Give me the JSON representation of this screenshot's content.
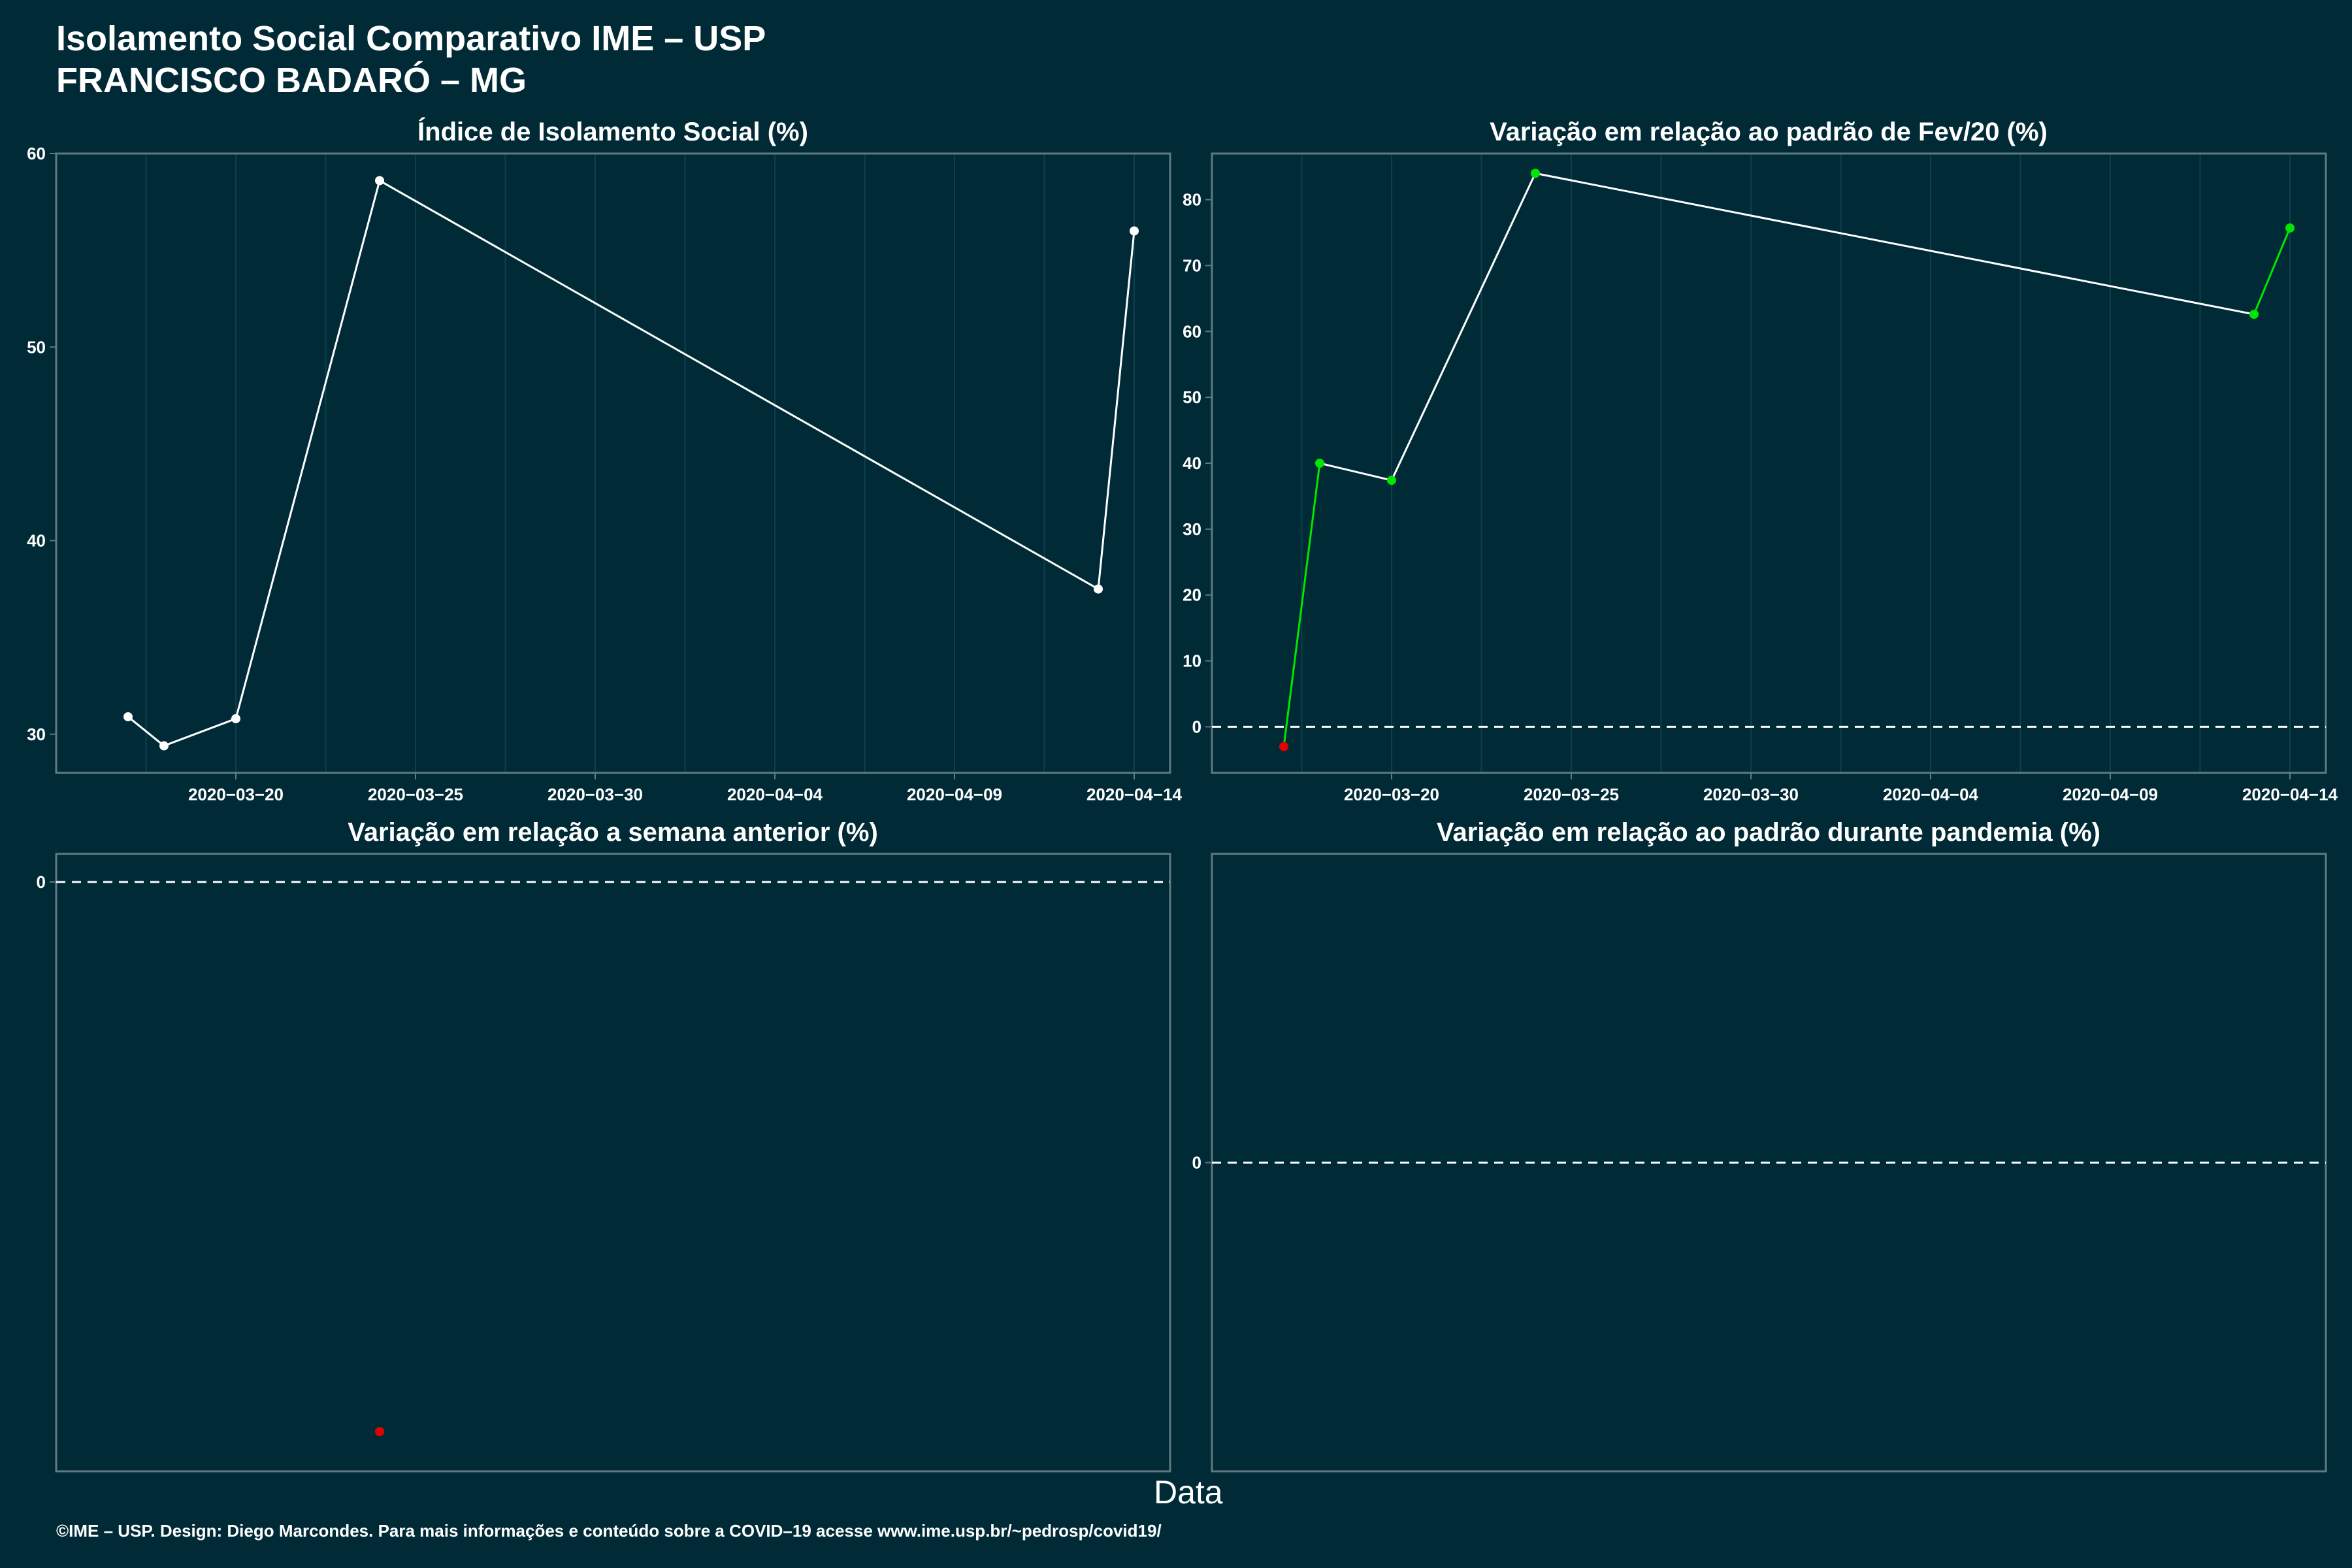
{
  "header": {
    "title_line1": "Isolamento Social Comparativo IME – USP",
    "title_line2": "FRANCISCO BADARÓ – MG"
  },
  "x_axis_label": "Data",
  "footer": "©IME – USP. Design: Diego Marcondes. Para mais informações e conteúdo sobre a COVID–19 acesse www.ime.usp.br/~pedrosp/covid19/",
  "colors": {
    "background": "#002b36",
    "line": "#ffffff",
    "positive": "#00e600",
    "negative": "#e60000",
    "grid": "#0d3f4c",
    "frame": "#5f7a80"
  },
  "chart_data": [
    {
      "type": "line",
      "title": "Índice de Isolamento Social (%)",
      "x_type": "date",
      "x": [
        "2020-03-17",
        "2020-03-18",
        "2020-03-20",
        "2020-03-24",
        "2020-04-13",
        "2020-04-14"
      ],
      "series": [
        {
          "values": [
            30.9,
            29.4,
            30.8,
            58.6,
            37.5,
            56.0
          ]
        }
      ],
      "x_ticks": [
        "2020−03−20",
        "2020−03−25",
        "2020−03−30",
        "2020−04−04",
        "2020−04−09",
        "2020−04−14"
      ],
      "y_ticks": [
        "30",
        "40",
        "50",
        "60"
      ],
      "ylim": [
        28,
        60
      ],
      "point_color": "white",
      "grid": true
    },
    {
      "type": "line",
      "title": "Variação em relação ao padrão de Fev/20 (%)",
      "x_type": "date",
      "x": [
        "2020-03-17",
        "2020-03-18",
        "2020-03-20",
        "2020-03-24",
        "2020-04-13",
        "2020-04-14"
      ],
      "series": [
        {
          "values": [
            -3.0,
            40.0,
            37.4,
            84.0,
            62.6,
            75.7
          ]
        }
      ],
      "x_ticks": [
        "2020−03−20",
        "2020−03−25",
        "2020−03−30",
        "2020−04−04",
        "2020−04−09",
        "2020−04−14"
      ],
      "y_ticks": [
        "0",
        "10",
        "20",
        "30",
        "40",
        "50",
        "60",
        "70",
        "80"
      ],
      "ylim": [
        -7,
        87
      ],
      "reference_line": 0,
      "point_color": "sign",
      "grid": true
    },
    {
      "type": "scatter",
      "title": "Variação em relação a semana anterior (%)",
      "x_type": "date",
      "x": [
        "2020-03-24"
      ],
      "series": [
        {
          "values": [
            -47.0
          ]
        }
      ],
      "x_ticks": [],
      "y_ticks": [
        "0"
      ],
      "ylim": [
        -50.4,
        2.4
      ],
      "reference_line": 0,
      "point_color": "sign",
      "grid": false
    },
    {
      "type": "line",
      "title": "Variação em relação ao padrão durante pandemia (%)",
      "x_type": "date",
      "x": [],
      "series": [
        {
          "values": []
        }
      ],
      "x_ticks": [],
      "y_ticks": [
        "0"
      ],
      "ylim": [
        -1,
        1
      ],
      "reference_line": 0,
      "grid": false
    }
  ]
}
